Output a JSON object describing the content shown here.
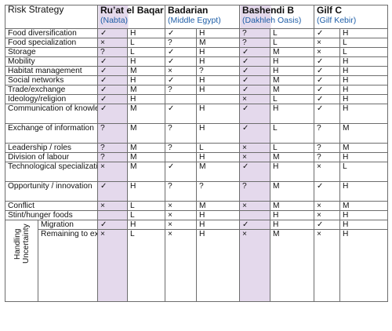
{
  "header": {
    "strategy_label": "Risk Strategy",
    "sites": [
      {
        "name": "Ru’at el Baqar",
        "region": "(Nabta)"
      },
      {
        "name": "Badarian",
        "region": "(Middle Egypt)"
      },
      {
        "name": "Bashendi B",
        "region": "(Dakhleh Oasis)"
      },
      {
        "name": "Gilf C",
        "region": "(Gilf Kebir)"
      }
    ]
  },
  "rows": [
    {
      "label": "Food diversification",
      "cells": [
        "✓",
        "H",
        "✓",
        "H",
        "?",
        "L",
        "✓",
        "H"
      ]
    },
    {
      "label": "Food specialization",
      "cells": [
        "×",
        "L",
        "?",
        "M",
        "?",
        "L",
        "×",
        "L"
      ]
    },
    {
      "label": "Storage",
      "cells": [
        "?",
        "L",
        "✓",
        "H",
        "✓",
        "M",
        "×",
        "L"
      ]
    },
    {
      "label": "Mobility",
      "cells": [
        "✓",
        "H",
        "✓",
        "H",
        "✓",
        "H",
        "✓",
        "H"
      ]
    },
    {
      "label": "Habitat management",
      "cells": [
        "✓",
        "M",
        "×",
        "?",
        "✓",
        "H",
        "✓",
        "H"
      ]
    },
    {
      "label": "Social networks",
      "cells": [
        "✓",
        "H",
        "✓",
        "H",
        "✓",
        "M",
        "✓",
        "H"
      ]
    },
    {
      "label": "Trade/exchange",
      "cells": [
        "✓",
        "M",
        "?",
        "H",
        "✓",
        "M",
        "✓",
        "H"
      ]
    },
    {
      "label": "Ideology/religion",
      "cells": [
        "✓",
        "H",
        "",
        "",
        "×",
        "L",
        "✓",
        "H"
      ]
    },
    {
      "label": "Communication of knowledge",
      "cells": [
        "✓",
        "M",
        "✓",
        "H",
        "✓",
        "H",
        "✓",
        "H"
      ]
    },
    {
      "label": "Exchange of information",
      "cells": [
        "?",
        "M",
        "?",
        "H",
        "✓",
        "L",
        "?",
        "M"
      ]
    },
    {
      "label": "Leadership / roles",
      "cells": [
        "?",
        "M",
        "?",
        "L",
        "×",
        "L",
        "?",
        "M"
      ]
    },
    {
      "label": "Division of labour",
      "cells": [
        "?",
        "M",
        "",
        "H",
        "×",
        "M",
        "?",
        "H"
      ]
    },
    {
      "label": "Technological specialization",
      "cells": [
        "×",
        "M",
        "✓",
        "M",
        "✓",
        "H",
        "×",
        "L"
      ]
    },
    {
      "label": "Opportunity / innovation",
      "cells": [
        "✓",
        "H",
        "?",
        "?",
        "?",
        "M",
        "✓",
        "H"
      ]
    },
    {
      "label": "Conflict",
      "cells": [
        "×",
        "L",
        "×",
        "M",
        "×",
        "M",
        "×",
        "M"
      ]
    },
    {
      "label": "Stint/hunger foods",
      "cells": [
        "",
        "L",
        "×",
        "H",
        "",
        "H",
        "×",
        "H"
      ]
    }
  ],
  "uncertainty": {
    "group_label": "Handling Uncertainty",
    "rows": [
      {
        "label": "Migration",
        "cells": [
          "✓",
          "H",
          "×",
          "H",
          "✓",
          "H",
          "✓",
          "H"
        ]
      },
      {
        "label": "Remaining to experience impoverished conditions/ death",
        "cells": [
          "×",
          "L",
          "×",
          "H",
          "×",
          "M",
          "×",
          "H"
        ]
      }
    ]
  },
  "colors": {
    "site_column_tint": "#e4d9ec",
    "region_text": "#1f5fa8",
    "border": "#6d6d6d"
  }
}
